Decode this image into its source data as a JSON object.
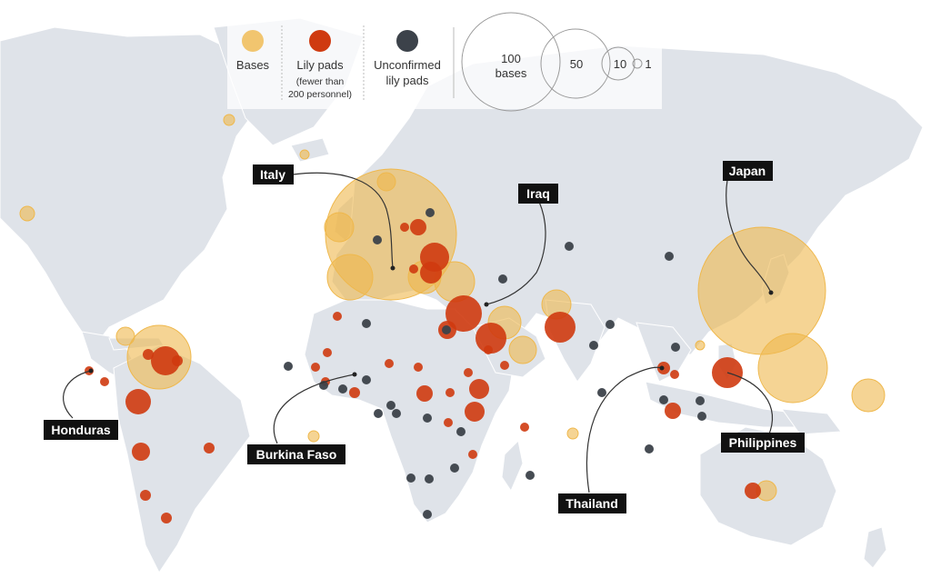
{
  "colors": {
    "land": "#dfe3e9",
    "land_border": "#ffffff",
    "base": "#efb84c",
    "lily": "#cf3a10",
    "unconfirmed": "#3c424a",
    "leader": "#333333"
  },
  "legend": {
    "bases": "Bases",
    "lily_pads": "Lily pads",
    "lily_pads_note_1": "(fewer than",
    "lily_pads_note_2": "200 personnel)",
    "unconfirmed_1": "Unconfirmed",
    "unconfirmed_2": "lily pads",
    "size_100_1": "100",
    "size_100_2": "bases",
    "size_50": "50",
    "size_10": "10",
    "size_1": "1"
  },
  "labels": {
    "italy": "Italy",
    "iraq": "Iraq",
    "japan": "Japan",
    "honduras": "Honduras",
    "burkina_faso": "Burkina Faso",
    "thailand": "Thailand",
    "philippines": "Philippines"
  }
}
